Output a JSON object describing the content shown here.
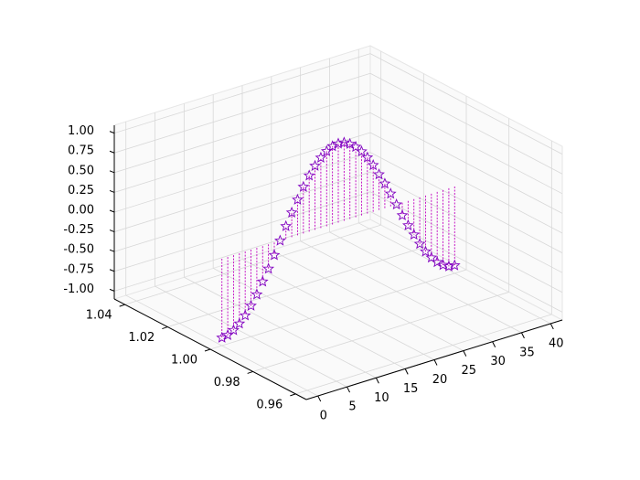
{
  "chart_data": {
    "type": "stem3d",
    "x": [
      0,
      1,
      2,
      3,
      4,
      5,
      6,
      7,
      8,
      9,
      10,
      11,
      12,
      13,
      14,
      15,
      16,
      17,
      18,
      19,
      20,
      21,
      22,
      23,
      24,
      25,
      26,
      27,
      28,
      29,
      30,
      31,
      32,
      33,
      34,
      35,
      36,
      37,
      38,
      39,
      40
    ],
    "y_const": 1,
    "values": [
      -1,
      -0.99,
      -0.95,
      -0.89,
      -0.81,
      -0.71,
      -0.59,
      -0.45,
      -0.31,
      -0.16,
      0,
      0.16,
      0.31,
      0.45,
      0.59,
      0.71,
      0.81,
      0.89,
      0.95,
      0.99,
      1,
      0.99,
      0.95,
      0.89,
      0.81,
      0.71,
      0.59,
      0.45,
      0.31,
      0.16,
      0,
      -0.16,
      -0.31,
      -0.45,
      -0.59,
      -0.71,
      -0.81,
      -0.89,
      -0.95,
      -0.99,
      -1
    ],
    "color": "#c000c0",
    "marker_color": "#8000c0",
    "xlim": [
      -2,
      42
    ],
    "ylim": [
      0.955,
      1.045
    ],
    "zlim": [
      -1.1,
      1.1
    ],
    "xticks": [
      0,
      5,
      10,
      15,
      20,
      25,
      30,
      35,
      40
    ],
    "yticks": [
      {
        "value": 0.96,
        "label": "0.96"
      },
      {
        "value": 0.98,
        "label": "0.98"
      },
      {
        "value": 1,
        "label": "1.00"
      },
      {
        "value": 1.02,
        "label": "1.02"
      },
      {
        "value": 1.04,
        "label": "1.04"
      }
    ],
    "zticks": [
      {
        "value": -1,
        "label": "-1.00"
      },
      {
        "value": -0.75,
        "label": "-0.75"
      },
      {
        "value": -0.5,
        "label": "-0.50"
      },
      {
        "value": -0.25,
        "label": "-0.25"
      },
      {
        "value": 0,
        "label": "0.00"
      },
      {
        "value": 0.25,
        "label": "0.25"
      },
      {
        "value": 0.5,
        "label": "0.50"
      },
      {
        "value": 0.75,
        "label": "0.75"
      },
      {
        "value": 1,
        "label": "1.00"
      }
    ],
    "grid": true
  }
}
